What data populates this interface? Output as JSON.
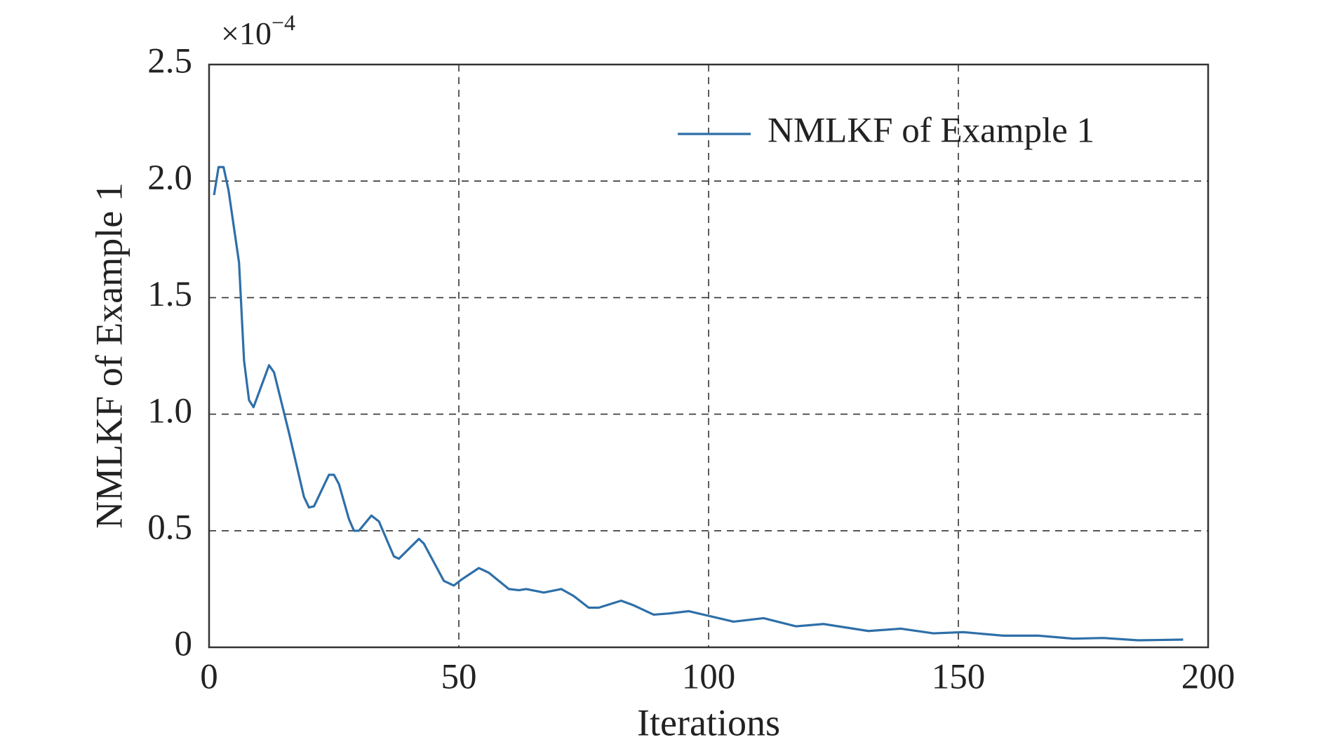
{
  "chart_data": {
    "type": "line",
    "xlabel": "Iterations",
    "ylabel": "NMLKF of Example 1",
    "y_multiplier": {
      "base": "×10",
      "exponent": "−4"
    },
    "x": [
      1,
      1.9,
      2.9,
      3.9,
      6,
      7,
      8,
      8.9,
      12,
      13,
      16,
      19,
      20,
      21,
      24,
      25,
      26,
      28,
      29,
      30,
      32.5,
      34,
      37,
      38,
      42,
      43,
      47,
      49,
      50.5,
      54,
      56,
      60,
      62,
      63.5,
      67,
      70.5,
      73,
      76,
      78,
      82.5,
      85,
      89,
      92,
      96,
      100,
      105,
      111,
      117.5,
      123,
      132,
      138.5,
      145,
      151,
      159,
      166,
      173,
      179,
      186,
      195
    ],
    "series": [
      {
        "name": "NMLKF of Example 1",
        "color": "#2e6fa8",
        "values": [
          1.94,
          2.06,
          2.06,
          1.96,
          1.65,
          1.23,
          1.06,
          1.03,
          1.21,
          1.18,
          0.92,
          0.645,
          0.6,
          0.605,
          0.74,
          0.74,
          0.7,
          0.55,
          0.5,
          0.5,
          0.565,
          0.54,
          0.39,
          0.38,
          0.465,
          0.445,
          0.285,
          0.265,
          0.29,
          0.34,
          0.32,
          0.25,
          0.245,
          0.25,
          0.235,
          0.25,
          0.22,
          0.17,
          0.17,
          0.2,
          0.18,
          0.14,
          0.145,
          0.155,
          0.135,
          0.11,
          0.125,
          0.09,
          0.1,
          0.07,
          0.08,
          0.06,
          0.065,
          0.05,
          0.05,
          0.037,
          0.04,
          0.03,
          0.033
        ]
      }
    ],
    "xlim": [
      0,
      200
    ],
    "xticks": [
      0,
      50,
      100,
      150,
      200
    ],
    "ylim": [
      0,
      2.5
    ],
    "yticks": [
      0,
      0.5,
      {
        "value": 1,
        "label": "1.0"
      },
      1.5,
      {
        "value": 2,
        "label": "2.0"
      },
      2.5
    ],
    "grid": true,
    "legend": "upper right"
  }
}
